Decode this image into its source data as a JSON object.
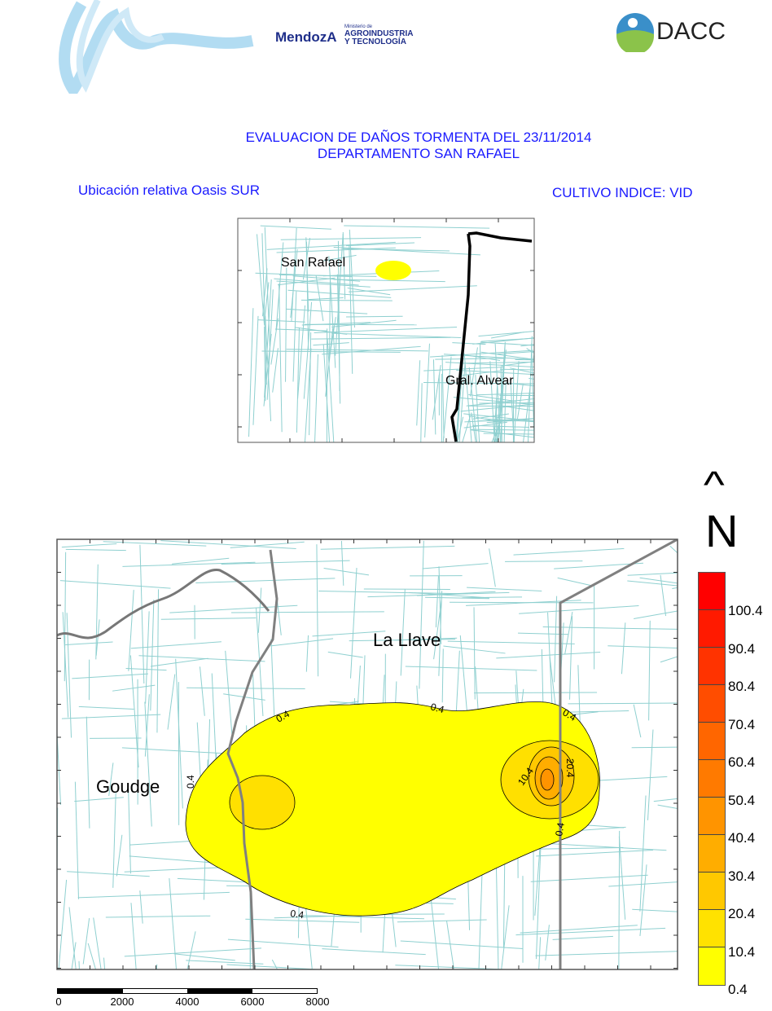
{
  "header": {
    "logo_left_text": "MendozA",
    "logo_ministry_small": "Ministerio de",
    "logo_ministry_line1": "AGROINDUSTRIA",
    "logo_ministry_line2": "Y TECNOLOGÍA",
    "logo_right_text": "DACC"
  },
  "title": {
    "line1": "EVALUACION DE DAÑOS TORMENTA DEL 23/11/2014",
    "line2": "DEPARTAMENTO SAN RAFAEL"
  },
  "subtitle_left": "Ubicación relativa Oasis SUR",
  "subtitle_right": "CULTIVO INDICE: VID",
  "inset_map": {
    "places": [
      "San Rafael",
      "Gral. Alvear"
    ]
  },
  "main_map": {
    "places": [
      "La Llave",
      "Goudge"
    ],
    "contour_labels": [
      "0.4",
      "0.4",
      "0.4",
      "0.4",
      "0.4",
      "0.4",
      "10.4",
      "20.4"
    ],
    "north_arrow": "^",
    "north_label": "N"
  },
  "legend": {
    "labels": [
      "100.4",
      "90.4",
      "80.4",
      "70.4",
      "60.4",
      "50.4",
      "40.4",
      "30.4",
      "20.4",
      "10.4",
      "0.4"
    ],
    "colors": [
      "#ff0000",
      "#ff1a00",
      "#ff3300",
      "#ff4d00",
      "#ff6600",
      "#ff7a00",
      "#ff9400",
      "#ffad00",
      "#ffc800",
      "#ffe200",
      "#ffff00"
    ]
  },
  "scale_bar": {
    "labels": [
      "0",
      "2000",
      "4000",
      "6000",
      "8000"
    ]
  },
  "colors": {
    "title": "#1a1aff",
    "roads": "#8fd0d0",
    "boundary": "#808080",
    "damage_low": "#ffff00"
  }
}
